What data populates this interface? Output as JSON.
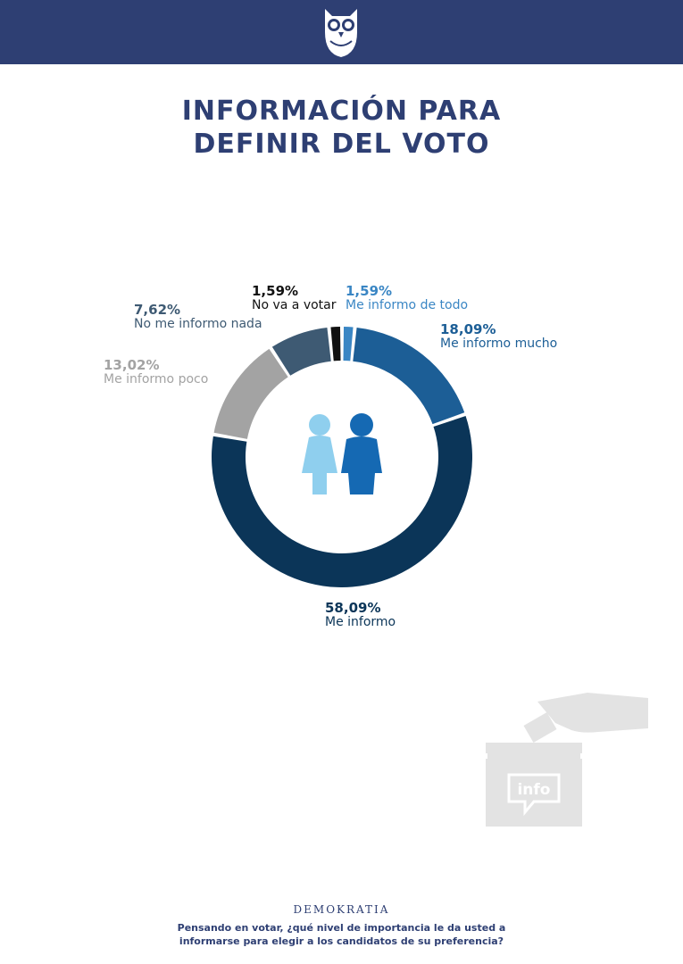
{
  "header": {
    "logo_icon": "owl-icon",
    "bar_color": "#2e3f73"
  },
  "title": {
    "line1": "INFORMACIÓN PARA",
    "line2": "DEFINIR DEL VOTO"
  },
  "chart_data": {
    "type": "pie",
    "title": "INFORMACIÓN PARA DEFINIR DEL VOTO",
    "center_icon": "people-icon",
    "slices": [
      {
        "label": "Me informo de todo",
        "value": 1.59,
        "value_text": "1,59%",
        "color": "#3a86c4"
      },
      {
        "label": "Me informo mucho",
        "value": 18.09,
        "value_text": "18,09%",
        "color": "#1c5e96"
      },
      {
        "label": "Me informo",
        "value": 58.09,
        "value_text": "58,09%",
        "color": "#0b3558"
      },
      {
        "label": "Me informo poco",
        "value": 13.02,
        "value_text": "13,02%",
        "color": "#a3a3a3"
      },
      {
        "label": "No me informo nada",
        "value": 7.62,
        "value_text": "7,62%",
        "color": "#3e5a73"
      },
      {
        "label": "No va a votar",
        "value": 1.59,
        "value_text": "1,59%",
        "color": "#111111"
      }
    ]
  },
  "decoration": {
    "ballot_box_text": "info",
    "ballot_icon": "ballot-box-icon"
  },
  "footer": {
    "brand": "DEMOKRATIA",
    "question_line1": "Pensando en votar, ¿qué nivel de importancia le da usted a",
    "question_line2": "informarse para elegir a los candidatos de su preferencia?"
  }
}
